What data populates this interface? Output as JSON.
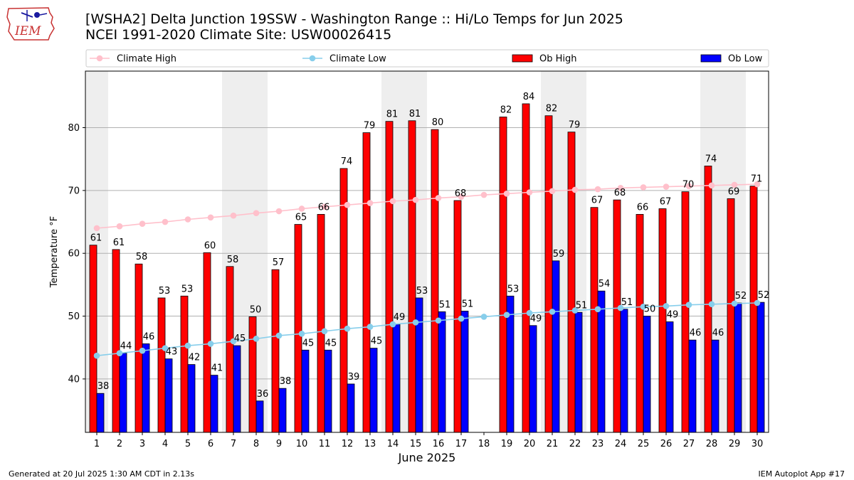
{
  "logo": {
    "text": "IEM"
  },
  "title": {
    "line1": "[WSHA2] Delta Junction 19SSW - Washington Range :: Hi/Lo Temps for Jun 2025",
    "line2": "NCEI 1991-2020 Climate Site: USW00026415"
  },
  "footer": {
    "left": "Generated at 20 Jul 2025 1:30 AM CDT in 2.13s",
    "right": "IEM Autoplot App #17"
  },
  "colors": {
    "ob_high": "#ff0000",
    "ob_low": "#0000ff",
    "climate_high": "#ffc0cb",
    "climate_low": "#87ceeb",
    "weekend_band": "#eeeeee",
    "grid": "#b0b0b0"
  },
  "chart_data": {
    "type": "bar",
    "xlabel": "June 2025",
    "ylabel": "Temperature °F",
    "ylim": [
      31.5,
      89
    ],
    "yticks": [
      40,
      50,
      60,
      70,
      80
    ],
    "grid": "horizontal",
    "legend_position": "top",
    "categories": [
      "1",
      "2",
      "3",
      "4",
      "5",
      "6",
      "7",
      "8",
      "9",
      "10",
      "11",
      "12",
      "13",
      "14",
      "15",
      "16",
      "17",
      "18",
      "19",
      "20",
      "21",
      "22",
      "23",
      "24",
      "25",
      "26",
      "27",
      "28",
      "29",
      "30"
    ],
    "weekend_days": [
      1,
      7,
      8,
      14,
      15,
      21,
      22,
      28,
      29
    ],
    "series": [
      {
        "name": "Ob High",
        "kind": "bar",
        "values": [
          61.3,
          60.6,
          58.3,
          52.9,
          53.2,
          60.1,
          57.9,
          49.9,
          57.4,
          64.6,
          66.2,
          73.5,
          79.2,
          81.0,
          81.1,
          79.7,
          68.4,
          null,
          81.7,
          83.8,
          81.9,
          79.3,
          67.3,
          68.5,
          66.2,
          67.1,
          69.8,
          73.9,
          68.7,
          70.7
        ],
        "labels": [
          "61",
          "61",
          "58",
          "53",
          "53",
          "60",
          "58",
          "50",
          "57",
          "65",
          "66",
          "74",
          "79",
          "81",
          "81",
          "80",
          "68",
          "",
          "82",
          "84",
          "82",
          "79",
          "67",
          "68",
          "66",
          "67",
          "70",
          "74",
          "69",
          "71"
        ]
      },
      {
        "name": "Ob Low",
        "kind": "bar",
        "values": [
          37.7,
          44.1,
          45.6,
          43.2,
          42.3,
          40.6,
          45.3,
          36.5,
          38.5,
          44.6,
          44.6,
          39.2,
          44.9,
          48.7,
          52.9,
          50.7,
          50.8,
          null,
          53.2,
          48.5,
          58.8,
          50.6,
          54.0,
          51.1,
          50.0,
          49.1,
          46.2,
          46.2,
          52.1,
          52.2
        ],
        "labels": [
          "38",
          "44",
          "46",
          "43",
          "42",
          "41",
          "45",
          "36",
          "38",
          "45",
          "45",
          "39",
          "45",
          "49",
          "53",
          "51",
          "51",
          "",
          "53",
          "49",
          "59",
          "51",
          "54",
          "51",
          "50",
          "49",
          "46",
          "46",
          "52",
          "52"
        ]
      },
      {
        "name": "Climate High",
        "kind": "line",
        "values": [
          64.0,
          64.3,
          64.7,
          65.0,
          65.4,
          65.7,
          66.0,
          66.4,
          66.7,
          67.1,
          67.4,
          67.7,
          68.0,
          68.3,
          68.5,
          68.8,
          69.0,
          69.3,
          69.5,
          69.7,
          69.9,
          70.1,
          70.2,
          70.4,
          70.5,
          70.6,
          70.7,
          70.8,
          70.9,
          71.0
        ]
      },
      {
        "name": "Climate Low",
        "kind": "line",
        "values": [
          43.7,
          44.1,
          44.5,
          44.9,
          45.3,
          45.6,
          46.0,
          46.4,
          46.9,
          47.2,
          47.6,
          48.0,
          48.3,
          48.7,
          49.0,
          49.3,
          49.6,
          49.9,
          50.2,
          50.5,
          50.7,
          50.9,
          51.1,
          51.3,
          51.5,
          51.6,
          51.8,
          51.9,
          52.0,
          52.1
        ]
      }
    ]
  }
}
